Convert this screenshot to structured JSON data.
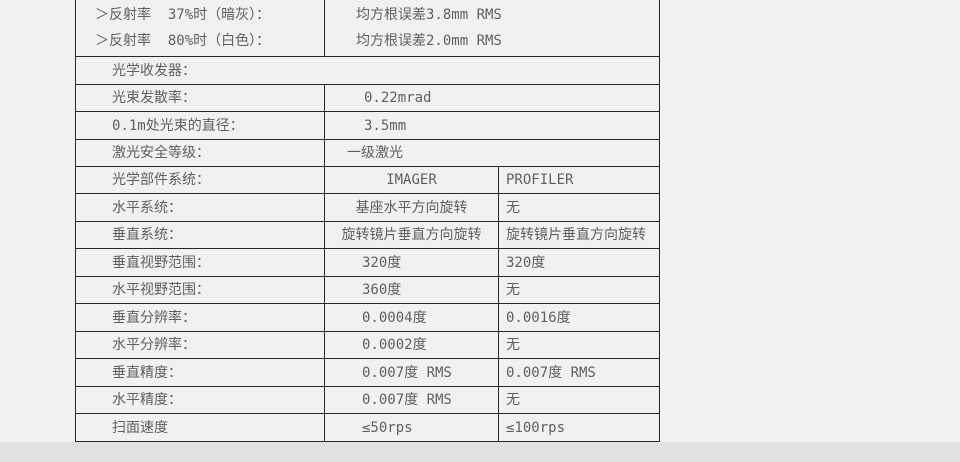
{
  "theme": {
    "page_background": "#f0f1f1",
    "footer_strip_color": "#e0e1e1",
    "table_border_color": "#272727",
    "text_color": "#5f5f5f",
    "cell_background": "#f0f1f1"
  },
  "table": {
    "columns": [
      249,
      174,
      160
    ],
    "column_headers_visible": [
      "IMAGER",
      "PROFILER"
    ],
    "rows": [
      {
        "h": 57,
        "cells": [
          {
            "kind": "label",
            "span": 1,
            "pad": 19,
            "lines": [
              "＞反射率  37%时（暗灰）：",
              "＞反射率  80%时（白色）："
            ]
          },
          {
            "kind": "value",
            "span": 2,
            "pad": 31,
            "lines": [
              "均方根误差3.8mm RMS",
              "均方根误差2.0mm RMS"
            ]
          }
        ]
      },
      {
        "h": 28,
        "cells": [
          {
            "kind": "label",
            "span": 3,
            "pad": 36,
            "lines": [
              "光学收发器："
            ]
          }
        ]
      },
      {
        "h": 27,
        "cells": [
          {
            "kind": "label",
            "span": 1,
            "pad": 36,
            "lines": [
              "光束发散率："
            ]
          },
          {
            "kind": "value",
            "span": 2,
            "pad": 39,
            "lines": [
              "0.22mrad"
            ]
          }
        ]
      },
      {
        "h": 28,
        "cells": [
          {
            "kind": "label",
            "span": 1,
            "pad": 36,
            "lines": [
              "0.1m处光束的直径："
            ]
          },
          {
            "kind": "value",
            "span": 2,
            "pad": 39,
            "lines": [
              "3.5mm"
            ]
          }
        ]
      },
      {
        "h": 27,
        "cells": [
          {
            "kind": "label",
            "span": 1,
            "pad": 36,
            "lines": [
              "激光安全等级："
            ]
          },
          {
            "kind": "value",
            "span": 2,
            "pad": 22,
            "lines": [
              "一级激光"
            ]
          }
        ]
      },
      {
        "h": 27,
        "cells": [
          {
            "kind": "label",
            "span": 1,
            "pad": 36,
            "lines": [
              "光学部件系统："
            ]
          },
          {
            "kind": "value",
            "span": 1,
            "align": "center",
            "lines": [
              "IMAGER"
            ]
          },
          {
            "kind": "value",
            "span": 1,
            "pad": 7,
            "lines": [
              "PROFILER"
            ]
          }
        ]
      },
      {
        "h": 28,
        "cells": [
          {
            "kind": "label",
            "span": 1,
            "pad": 36,
            "lines": [
              "水平系统："
            ]
          },
          {
            "kind": "value",
            "span": 1,
            "align": "center",
            "lines": [
              "基座水平方向旋转"
            ]
          },
          {
            "kind": "value",
            "span": 1,
            "pad": 7,
            "lines": [
              "无"
            ]
          }
        ]
      },
      {
        "h": 27,
        "cells": [
          {
            "kind": "label",
            "span": 1,
            "pad": 36,
            "lines": [
              "垂直系统："
            ]
          },
          {
            "kind": "value",
            "span": 1,
            "align": "center",
            "lines": [
              "旋转镜片垂直方向旋转"
            ]
          },
          {
            "kind": "value",
            "span": 1,
            "pad": 7,
            "lines": [
              "旋转镜片垂直方向旋转"
            ]
          }
        ]
      },
      {
        "h": 28,
        "cells": [
          {
            "kind": "label",
            "span": 1,
            "pad": 36,
            "lines": [
              "垂直视野范围："
            ]
          },
          {
            "kind": "value",
            "span": 1,
            "pad": 37,
            "lines": [
              "320度"
            ]
          },
          {
            "kind": "value",
            "span": 1,
            "pad": 7,
            "lines": [
              "320度"
            ]
          }
        ]
      },
      {
        "h": 27,
        "cells": [
          {
            "kind": "label",
            "span": 1,
            "pad": 36,
            "lines": [
              "水平视野范围："
            ]
          },
          {
            "kind": "value",
            "span": 1,
            "pad": 37,
            "lines": [
              "360度"
            ]
          },
          {
            "kind": "value",
            "span": 1,
            "pad": 7,
            "lines": [
              "无"
            ]
          }
        ]
      },
      {
        "h": 28,
        "cells": [
          {
            "kind": "label",
            "span": 1,
            "pad": 36,
            "lines": [
              "垂直分辨率："
            ]
          },
          {
            "kind": "value",
            "span": 1,
            "pad": 37,
            "lines": [
              "0.0004度"
            ]
          },
          {
            "kind": "value",
            "span": 1,
            "pad": 7,
            "lines": [
              "0.0016度"
            ]
          }
        ]
      },
      {
        "h": 27,
        "cells": [
          {
            "kind": "label",
            "span": 1,
            "pad": 36,
            "lines": [
              "水平分辨率："
            ]
          },
          {
            "kind": "value",
            "span": 1,
            "pad": 37,
            "lines": [
              "0.0002度"
            ]
          },
          {
            "kind": "value",
            "span": 1,
            "pad": 7,
            "lines": [
              "无"
            ]
          }
        ]
      },
      {
        "h": 28,
        "cells": [
          {
            "kind": "label",
            "span": 1,
            "pad": 36,
            "lines": [
              "垂直精度："
            ]
          },
          {
            "kind": "value",
            "span": 1,
            "pad": 37,
            "lines": [
              "0.007度 RMS"
            ]
          },
          {
            "kind": "value",
            "span": 1,
            "pad": 7,
            "lines": [
              "0.007度 RMS"
            ]
          }
        ]
      },
      {
        "h": 27,
        "cells": [
          {
            "kind": "label",
            "span": 1,
            "pad": 36,
            "lines": [
              "水平精度："
            ]
          },
          {
            "kind": "value",
            "span": 1,
            "pad": 37,
            "lines": [
              "0.007度 RMS"
            ]
          },
          {
            "kind": "value",
            "span": 1,
            "pad": 7,
            "lines": [
              "无"
            ]
          }
        ]
      },
      {
        "h": 28,
        "cells": [
          {
            "kind": "label",
            "span": 1,
            "pad": 36,
            "lines": [
              "扫面速度"
            ]
          },
          {
            "kind": "value",
            "span": 1,
            "pad": 37,
            "lines": [
              "≤50rps"
            ]
          },
          {
            "kind": "value",
            "span": 1,
            "pad": 7,
            "lines": [
              "≤100rps"
            ]
          }
        ]
      }
    ]
  }
}
